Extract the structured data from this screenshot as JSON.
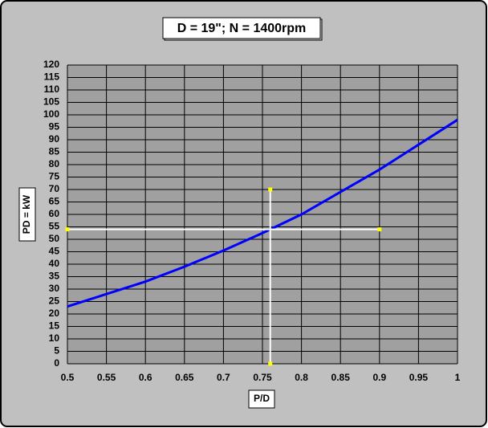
{
  "chart_data": {
    "type": "line",
    "title": "D = 19\"; N = 1400rpm",
    "x_label": "P/D",
    "y_label": "PD = kW",
    "series": [
      {
        "color": "#0000ff",
        "x": [
          0.5,
          0.55,
          0.6,
          0.65,
          0.7,
          0.75,
          0.8,
          0.85,
          0.9,
          0.95,
          1.0
        ],
        "values": [
          23,
          28,
          33,
          39,
          45.5,
          52.5,
          60,
          69,
          78,
          88,
          98
        ]
      },
      {
        "color": "#ffffff",
        "marker_color": "#ffff00",
        "x": [
          0.5,
          0.9
        ],
        "values": [
          54,
          54
        ]
      },
      {
        "color": "#ffffff",
        "marker_color": "#ffff00",
        "x": [
          0.76,
          0.76
        ],
        "values": [
          0,
          70
        ]
      }
    ],
    "xlim": [
      0.5,
      1
    ],
    "xticks": [
      0.5,
      0.55,
      0.6,
      0.65,
      0.7,
      0.75,
      0.8,
      0.85,
      0.9,
      0.95,
      1
    ],
    "ylim": [
      0,
      120
    ],
    "yticks": [
      0,
      5,
      10,
      15,
      20,
      25,
      30,
      35,
      40,
      45,
      50,
      55,
      60,
      65,
      70,
      75,
      80,
      85,
      90,
      95,
      100,
      105,
      110,
      115,
      120
    ],
    "grid": true
  }
}
